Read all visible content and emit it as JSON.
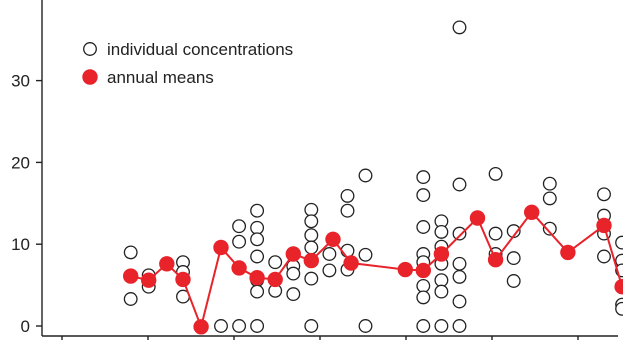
{
  "chart_data": {
    "type": "scatter",
    "title": "",
    "xlabel": "",
    "ylabel": "",
    "ylim": [
      -1,
      40
    ],
    "xlim": [
      0,
      31
    ],
    "yticks": [
      0,
      10,
      20,
      30
    ],
    "xticks_unlabeled": [
      1,
      6,
      11,
      16,
      21,
      26,
      31
    ],
    "grid": false,
    "legend_position": "top-left",
    "colors": {
      "means": "#e8232a",
      "individual_stroke": "#222222",
      "axis": "#222222"
    },
    "series": [
      {
        "name": "individual concentrations",
        "marker": "open-circle",
        "points": [
          [
            4.8,
            9.0
          ],
          [
            4.8,
            3.3
          ],
          [
            5.8,
            6.2
          ],
          [
            5.8,
            4.8
          ],
          [
            7.7,
            7.8
          ],
          [
            7.7,
            6.6
          ],
          [
            7.7,
            3.6
          ],
          [
            9.8,
            0.0
          ],
          [
            10.8,
            12.2
          ],
          [
            10.8,
            10.3
          ],
          [
            10.8,
            0.0
          ],
          [
            11.8,
            14.1
          ],
          [
            11.8,
            12.0
          ],
          [
            11.8,
            10.6
          ],
          [
            11.8,
            8.5
          ],
          [
            11.8,
            5.6
          ],
          [
            11.8,
            4.2
          ],
          [
            11.8,
            0.0
          ],
          [
            12.8,
            7.8
          ],
          [
            12.8,
            4.3
          ],
          [
            13.8,
            7.3
          ],
          [
            13.8,
            6.4
          ],
          [
            13.8,
            3.9
          ],
          [
            14.8,
            14.2
          ],
          [
            14.8,
            12.8
          ],
          [
            14.8,
            11.1
          ],
          [
            14.8,
            9.6
          ],
          [
            14.8,
            5.8
          ],
          [
            14.8,
            0.0
          ],
          [
            15.8,
            8.8
          ],
          [
            15.8,
            6.8
          ],
          [
            16.8,
            15.9
          ],
          [
            16.8,
            14.1
          ],
          [
            16.8,
            9.2
          ],
          [
            16.8,
            6.9
          ],
          [
            17.8,
            18.4
          ],
          [
            17.8,
            8.7
          ],
          [
            17.8,
            0.0
          ],
          [
            21.0,
            18.2
          ],
          [
            21.0,
            16.0
          ],
          [
            21.0,
            12.1
          ],
          [
            21.0,
            8.8
          ],
          [
            21.0,
            7.8
          ],
          [
            21.0,
            4.9
          ],
          [
            21.0,
            3.5
          ],
          [
            21.0,
            0.0
          ],
          [
            22.0,
            12.8
          ],
          [
            22.0,
            11.5
          ],
          [
            22.0,
            9.7
          ],
          [
            22.0,
            7.6
          ],
          [
            22.0,
            5.6
          ],
          [
            22.0,
            4.2
          ],
          [
            22.0,
            0.0
          ],
          [
            23.0,
            36.5
          ],
          [
            23.0,
            17.3
          ],
          [
            23.0,
            11.3
          ],
          [
            23.0,
            7.6
          ],
          [
            23.0,
            6.0
          ],
          [
            23.0,
            3.0
          ],
          [
            23.0,
            0.0
          ],
          [
            25.0,
            18.6
          ],
          [
            25.0,
            11.3
          ],
          [
            25.0,
            8.8
          ],
          [
            26.0,
            11.6
          ],
          [
            26.0,
            8.3
          ],
          [
            26.0,
            5.5
          ],
          [
            28.0,
            17.4
          ],
          [
            28.0,
            15.6
          ],
          [
            28.0,
            11.9
          ],
          [
            31.0,
            16.1
          ],
          [
            31.0,
            13.5
          ],
          [
            31.0,
            11.3
          ],
          [
            31.0,
            8.5
          ],
          [
            32.0,
            10.2
          ],
          [
            32.0,
            8.0
          ],
          [
            32.0,
            6.8
          ],
          [
            32.0,
            2.6
          ],
          [
            32.0,
            2.1
          ]
        ]
      },
      {
        "name": "annual means",
        "marker": "filled-circle-line",
        "points": [
          [
            4.8,
            6.1
          ],
          [
            5.8,
            5.6
          ],
          [
            6.8,
            7.6
          ],
          [
            7.7,
            5.7
          ],
          [
            8.7,
            -0.1
          ],
          [
            9.8,
            9.6
          ],
          [
            10.8,
            7.1
          ],
          [
            11.8,
            5.9
          ],
          [
            12.8,
            5.7
          ],
          [
            13.8,
            8.8
          ],
          [
            14.8,
            8.0
          ],
          [
            16.0,
            10.6
          ],
          [
            17.0,
            7.7
          ],
          [
            20.0,
            6.9
          ],
          [
            21.0,
            6.8
          ],
          [
            22.0,
            8.8
          ],
          [
            24.0,
            13.2
          ],
          [
            25.0,
            8.1
          ],
          [
            27.0,
            13.9
          ],
          [
            29.0,
            9.0
          ],
          [
            31.0,
            12.3
          ],
          [
            32.0,
            4.8
          ]
        ]
      }
    ]
  }
}
